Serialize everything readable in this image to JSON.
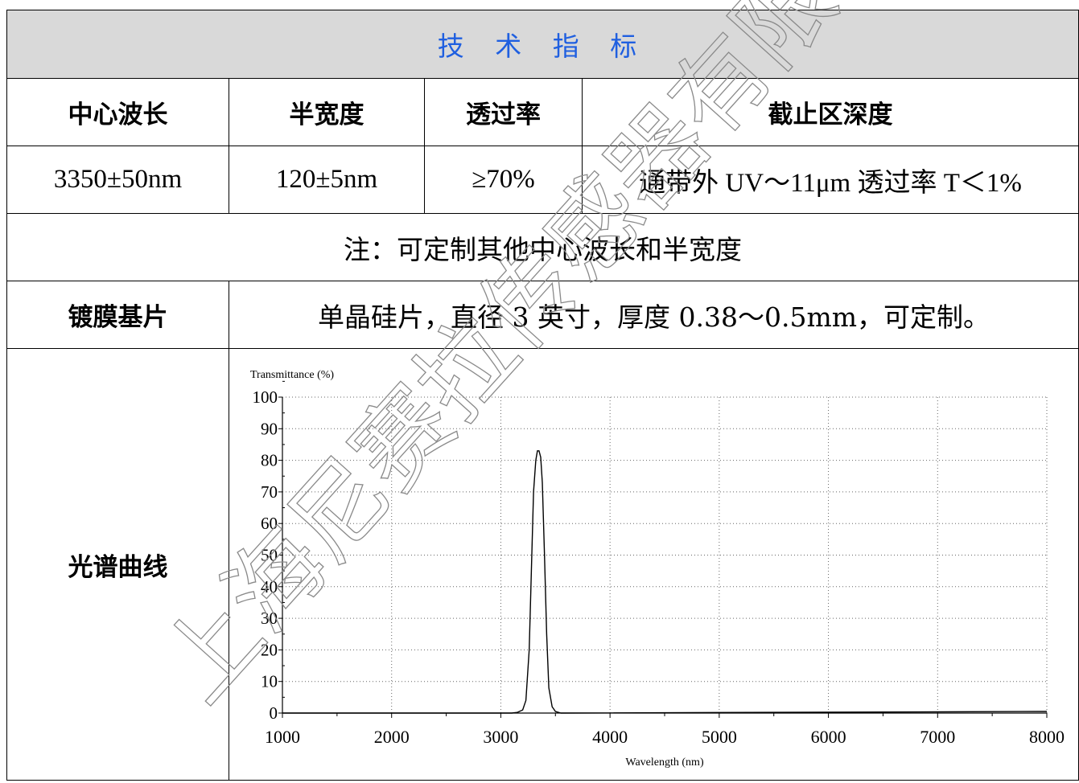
{
  "table": {
    "title": "技 术 指 标",
    "head": {
      "center_wavelength": "中心波长",
      "half_width": "半宽度",
      "transmittance": "透过率",
      "cutoff_depth": "截止区深度"
    },
    "values": {
      "center_wavelength": "3350±50nm",
      "half_width": "120±5nm",
      "transmittance": "≥70%",
      "cutoff_depth": "通带外 UV～11μm 透过率 T＜1%"
    },
    "note": "注：可定制其他中心波长和半宽度",
    "substrate": {
      "label": "镀膜基片",
      "value": "单晶硅片，直径 3 英寸，厚度 0.38～0.5mm，可定制。"
    },
    "spectrum_label": "光谱曲线"
  },
  "watermark": "上海尼赛拉传感器有限公司",
  "chart_data": {
    "type": "line",
    "ylabel": "Transmittance (%)",
    "xlabel": "Wavelength (nm)",
    "xlim": [
      1000,
      8000
    ],
    "ylim": [
      0,
      100
    ],
    "xticks": [
      1000,
      2000,
      3000,
      4000,
      5000,
      6000,
      7000,
      8000
    ],
    "yticks": [
      0,
      10,
      20,
      30,
      40,
      50,
      60,
      70,
      80,
      90,
      100
    ],
    "grid": true,
    "series": [
      {
        "x": [
          1000,
          3100,
          3150,
          3200,
          3230,
          3260,
          3280,
          3300,
          3320,
          3335,
          3350,
          3365,
          3380,
          3400,
          3420,
          3440,
          3470,
          3500,
          3550,
          8000
        ],
        "y": [
          0,
          0,
          0.2,
          1,
          4,
          20,
          45,
          70,
          80,
          83,
          83,
          81,
          73,
          50,
          25,
          8,
          2,
          0.5,
          0,
          0.5
        ]
      }
    ]
  }
}
